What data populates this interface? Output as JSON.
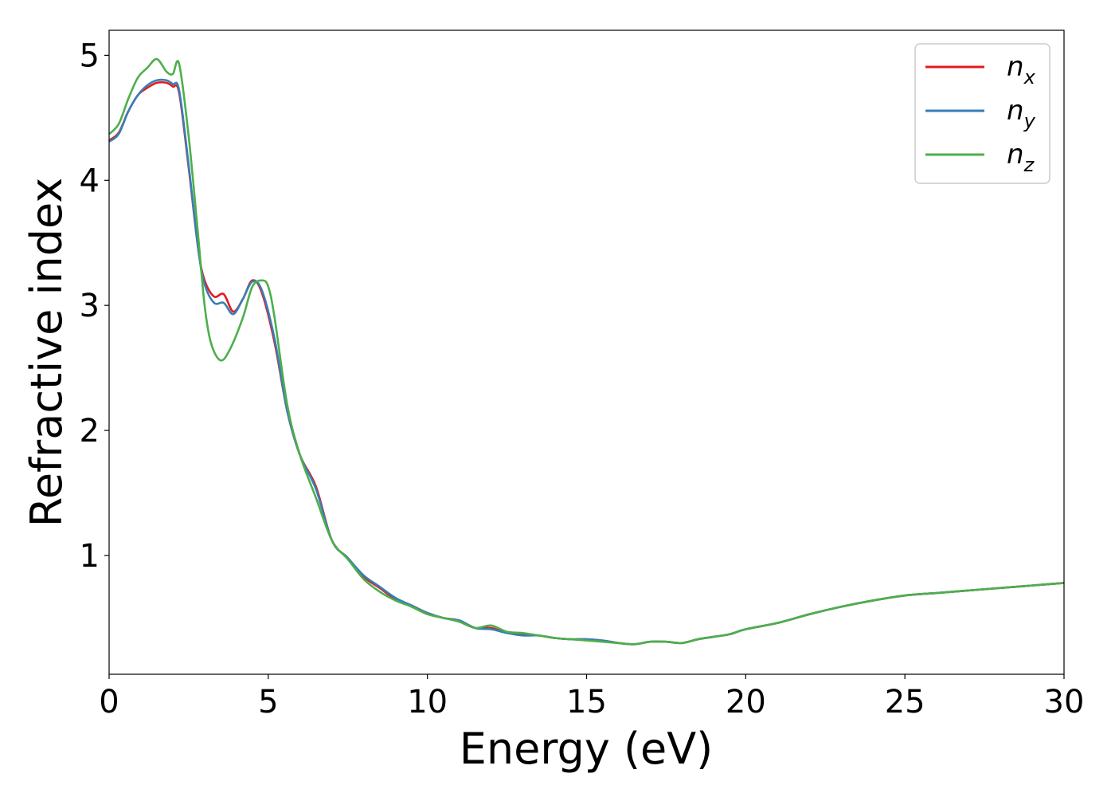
{
  "chart_data": {
    "type": "line",
    "xlabel": "Energy (eV)",
    "ylabel": "Refractive index",
    "xlim": [
      0,
      30
    ],
    "ylim": [
      0.05,
      5.2
    ],
    "xticks": [
      0,
      5,
      10,
      15,
      20,
      25,
      30
    ],
    "xtick_labels": [
      "0",
      "5",
      "10",
      "15",
      "20",
      "25",
      "30"
    ],
    "yticks": [
      1,
      2,
      3,
      4,
      5
    ],
    "ytick_labels": [
      "1",
      "2",
      "3",
      "4",
      "5"
    ],
    "grid": false,
    "legend_position": "top-right",
    "series": [
      {
        "name": "n",
        "subscript": "x",
        "color": "#e41a1c",
        "x": [
          0,
          0.3,
          0.6,
          0.9,
          1.2,
          1.5,
          1.8,
          2.0,
          2.2,
          2.5,
          2.8,
          3.0,
          3.3,
          3.6,
          3.9,
          4.2,
          4.5,
          4.8,
          5.2,
          5.6,
          6.0,
          6.5,
          7.0,
          7.5,
          8.0,
          8.5,
          9.0,
          9.5,
          10.0,
          10.5,
          11.0,
          11.5,
          12.0,
          12.5,
          13.0,
          13.5,
          14.0,
          14.5,
          15.0,
          15.5,
          16.0,
          16.5,
          17.0,
          17.5,
          18.0,
          18.5,
          19.0,
          19.5,
          20.0,
          21.0,
          22.0,
          23.0,
          24.0,
          25.0,
          26.0,
          27.0,
          28.0,
          29.0,
          30.0
        ],
        "y": [
          4.32,
          4.38,
          4.55,
          4.68,
          4.74,
          4.78,
          4.78,
          4.75,
          4.7,
          4.1,
          3.45,
          3.2,
          3.07,
          3.09,
          2.95,
          3.05,
          3.2,
          3.1,
          2.7,
          2.15,
          1.8,
          1.55,
          1.12,
          0.98,
          0.83,
          0.74,
          0.65,
          0.6,
          0.54,
          0.5,
          0.48,
          0.42,
          0.42,
          0.38,
          0.37,
          0.36,
          0.34,
          0.33,
          0.33,
          0.32,
          0.3,
          0.29,
          0.31,
          0.31,
          0.3,
          0.33,
          0.35,
          0.37,
          0.41,
          0.46,
          0.53,
          0.59,
          0.64,
          0.68,
          0.7,
          0.72,
          0.74,
          0.76,
          0.78
        ]
      },
      {
        "name": "n",
        "subscript": "y",
        "color": "#377eb8",
        "x": [
          0,
          0.3,
          0.6,
          0.9,
          1.2,
          1.5,
          1.8,
          2.0,
          2.2,
          2.5,
          2.8,
          3.0,
          3.3,
          3.6,
          3.9,
          4.2,
          4.5,
          4.8,
          5.2,
          5.6,
          6.0,
          6.5,
          7.0,
          7.5,
          8.0,
          8.5,
          9.0,
          9.5,
          10.0,
          10.5,
          11.0,
          11.5,
          12.0,
          12.5,
          13.0,
          13.5,
          14.0,
          14.5,
          15.0,
          15.5,
          16.0,
          16.5,
          17.0,
          17.5,
          18.0,
          18.5,
          19.0,
          19.5,
          20.0,
          21.0,
          22.0,
          23.0,
          24.0,
          25.0,
          26.0,
          27.0,
          28.0,
          29.0,
          30.0
        ],
        "y": [
          4.31,
          4.37,
          4.55,
          4.68,
          4.76,
          4.8,
          4.8,
          4.77,
          4.72,
          4.12,
          3.45,
          3.17,
          3.02,
          3.02,
          2.93,
          3.05,
          3.19,
          3.12,
          2.73,
          2.15,
          1.8,
          1.53,
          1.12,
          0.98,
          0.84,
          0.75,
          0.66,
          0.6,
          0.54,
          0.5,
          0.48,
          0.42,
          0.41,
          0.38,
          0.36,
          0.36,
          0.34,
          0.33,
          0.33,
          0.32,
          0.3,
          0.29,
          0.31,
          0.31,
          0.3,
          0.33,
          0.35,
          0.37,
          0.41,
          0.46,
          0.53,
          0.59,
          0.64,
          0.68,
          0.7,
          0.72,
          0.74,
          0.76,
          0.78
        ]
      },
      {
        "name": "n",
        "subscript": "z",
        "color": "#4daf4a",
        "x": [
          0,
          0.3,
          0.6,
          0.9,
          1.2,
          1.5,
          1.8,
          2.0,
          2.2,
          2.5,
          2.8,
          3.0,
          3.2,
          3.5,
          3.8,
          4.2,
          4.5,
          4.8,
          5.0,
          5.2,
          5.6,
          6.0,
          6.5,
          7.0,
          7.5,
          8.0,
          8.5,
          9.0,
          9.5,
          10.0,
          10.5,
          11.0,
          11.5,
          12.0,
          12.5,
          13.0,
          13.5,
          14.0,
          14.5,
          15.0,
          15.5,
          16.0,
          16.5,
          17.0,
          17.5,
          18.0,
          18.5,
          19.0,
          19.5,
          20.0,
          21.0,
          22.0,
          23.0,
          24.0,
          25.0,
          26.0,
          27.0,
          28.0,
          29.0,
          30.0
        ],
        "y": [
          4.37,
          4.45,
          4.65,
          4.82,
          4.9,
          4.97,
          4.87,
          4.85,
          4.93,
          4.35,
          3.55,
          3.0,
          2.7,
          2.56,
          2.65,
          2.9,
          3.15,
          3.2,
          3.15,
          2.9,
          2.2,
          1.8,
          1.46,
          1.12,
          0.97,
          0.81,
          0.71,
          0.64,
          0.59,
          0.53,
          0.5,
          0.47,
          0.42,
          0.44,
          0.39,
          0.38,
          0.36,
          0.34,
          0.33,
          0.32,
          0.31,
          0.3,
          0.29,
          0.31,
          0.31,
          0.3,
          0.33,
          0.35,
          0.37,
          0.41,
          0.46,
          0.53,
          0.59,
          0.64,
          0.68,
          0.7,
          0.72,
          0.74,
          0.76,
          0.78
        ]
      }
    ]
  }
}
